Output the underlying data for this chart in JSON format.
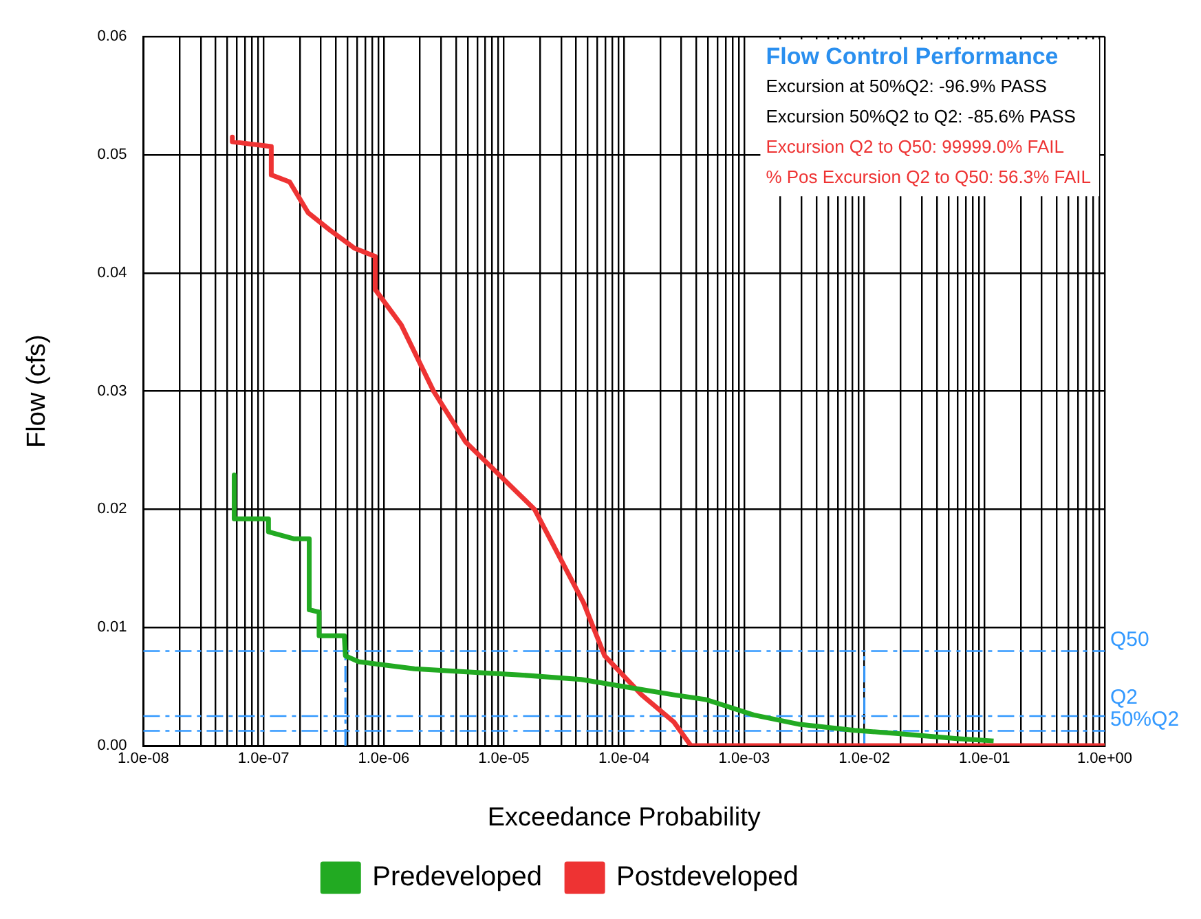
{
  "chart_data": {
    "type": "line",
    "xlabel": "Exceedance Probability",
    "ylabel": "Flow (cfs)",
    "log": "x",
    "grid": true,
    "legend": "bottom",
    "marker": "none",
    "annotations": [
      "Flow Control Performance",
      "Excursion at 50%Q2: -96.9% PASS",
      "Excursion 50%Q2 to Q2: -85.6% PASS",
      "Excursion Q2 to Q50: 99999.0% FAIL",
      "% Pos Excursion Q2 to Q50: 56.3% FAIL"
    ],
    "xlim": [
      1e-08,
      1
    ],
    "ylim": [
      0,
      0.06
    ],
    "xticks": [
      {
        "value": 1e-08,
        "label": "1.0e-08"
      },
      {
        "value": 2e-08,
        "label": null
      },
      {
        "value": 3e-08,
        "label": null
      },
      {
        "value": 4e-08,
        "label": null
      },
      {
        "value": 5e-08,
        "label": null
      },
      {
        "value": 6e-08,
        "label": null
      },
      {
        "value": 7e-08,
        "label": null
      },
      {
        "value": 8e-08,
        "label": null
      },
      {
        "value": 9e-08,
        "label": null
      },
      {
        "value": 1e-07,
        "label": "1.0e-07"
      },
      {
        "value": 2e-07,
        "label": null
      },
      {
        "value": 3e-07,
        "label": null
      },
      {
        "value": 4e-07,
        "label": null
      },
      {
        "value": 5e-07,
        "label": null
      },
      {
        "value": 6e-07,
        "label": null
      },
      {
        "value": 7e-07,
        "label": null
      },
      {
        "value": 8e-07,
        "label": null
      },
      {
        "value": 9e-07,
        "label": null
      },
      {
        "value": 1e-06,
        "label": "1.0e-06"
      },
      {
        "value": 2e-06,
        "label": null
      },
      {
        "value": 3e-06,
        "label": null
      },
      {
        "value": 4e-06,
        "label": null
      },
      {
        "value": 5e-06,
        "label": null
      },
      {
        "value": 6e-06,
        "label": null
      },
      {
        "value": 7e-06,
        "label": null
      },
      {
        "value": 8e-06,
        "label": null
      },
      {
        "value": 9e-06,
        "label": null
      },
      {
        "value": 1e-05,
        "label": "1.0e-05"
      },
      {
        "value": 2e-05,
        "label": null
      },
      {
        "value": 3e-05,
        "label": null
      },
      {
        "value": 4e-05,
        "label": null
      },
      {
        "value": 5e-05,
        "label": null
      },
      {
        "value": 6e-05,
        "label": null
      },
      {
        "value": 7e-05,
        "label": null
      },
      {
        "value": 8e-05,
        "label": null
      },
      {
        "value": 9e-05,
        "label": null
      },
      {
        "value": 0.0001,
        "label": "1.0e-04"
      },
      {
        "value": 0.0002,
        "label": null
      },
      {
        "value": 0.0003,
        "label": null
      },
      {
        "value": 0.0004,
        "label": null
      },
      {
        "value": 0.0005,
        "label": null
      },
      {
        "value": 0.0006,
        "label": null
      },
      {
        "value": 0.0007,
        "label": null
      },
      {
        "value": 0.0008,
        "label": null
      },
      {
        "value": 0.0009,
        "label": null
      },
      {
        "value": 0.001,
        "label": "1.0e-03"
      },
      {
        "value": 0.002,
        "label": null
      },
      {
        "value": 0.003,
        "label": null
      },
      {
        "value": 0.004,
        "label": null
      },
      {
        "value": 0.005,
        "label": null
      },
      {
        "value": 0.006,
        "label": null
      },
      {
        "value": 0.007,
        "label": null
      },
      {
        "value": 0.008,
        "label": null
      },
      {
        "value": 0.009,
        "label": null
      },
      {
        "value": 0.01,
        "label": "1.0e-02"
      },
      {
        "value": 0.02,
        "label": null
      },
      {
        "value": 0.03,
        "label": null
      },
      {
        "value": 0.04,
        "label": null
      },
      {
        "value": 0.05,
        "label": null
      },
      {
        "value": 0.06,
        "label": null
      },
      {
        "value": 0.07,
        "label": null
      },
      {
        "value": 0.08,
        "label": null
      },
      {
        "value": 0.09,
        "label": null
      },
      {
        "value": 0.1,
        "label": "1.0e-01"
      },
      {
        "value": 0.2,
        "label": null
      },
      {
        "value": 0.3,
        "label": null
      },
      {
        "value": 0.4,
        "label": null
      },
      {
        "value": 0.5,
        "label": null
      },
      {
        "value": 0.6,
        "label": null
      },
      {
        "value": 0.7,
        "label": null
      },
      {
        "value": 0.8,
        "label": null
      },
      {
        "value": 0.9,
        "label": null
      },
      {
        "value": 1,
        "label": "1.0e+00"
      }
    ],
    "yticks": [
      {
        "value": 0,
        "label": "0.00"
      },
      0.01,
      0.02,
      0.03,
      0.04,
      0.05,
      0.06
    ],
    "ref_lines": [
      {
        "axis": "y",
        "value": 0.008,
        "label": "Q50",
        "color": "#3399ff",
        "line_style": "dashed"
      },
      {
        "axis": "y",
        "value": 0.0025,
        "label": "Q2",
        "color": "#3399ff",
        "line_style": "dashed"
      },
      {
        "axis": "y",
        "value": 0.00125,
        "label": "50%Q2",
        "color": "#3399ff",
        "line_style": "dashed"
      }
    ],
    "series": [
      {
        "name": "Predeveloped",
        "color": "#22aa22",
        "x": [
          5.7e-08,
          5.7e-08,
          1.1e-07,
          1.1e-07,
          1.8e-07,
          2.4e-07,
          2.4e-07,
          2.9e-07,
          2.9e-07,
          4.7e-07,
          4.8e-07,
          6.2e-07,
          1.8e-06,
          5.8e-06,
          1.3e-05,
          4.4e-05,
          0.00013,
          0.00026,
          0.00048,
          0.0012,
          0.0029,
          0.0083,
          0.02,
          0.059,
          0.119
        ],
        "values": [
          0.0229,
          0.0192,
          0.0192,
          0.0181,
          0.0175,
          0.0175,
          0.0115,
          0.0113,
          0.0093,
          0.0093,
          0.0076,
          0.0071,
          0.0065,
          0.0062,
          0.006,
          0.0056,
          0.0048,
          0.0043,
          0.0039,
          0.0026,
          0.0018,
          0.0013,
          0.001,
          0.0006,
          0.0004
        ]
      },
      {
        "name": "Postdeveloped",
        "color": "#ee3333",
        "x": [
          5.5e-08,
          5.5e-08,
          1.16e-07,
          1.16e-07,
          1.65e-07,
          2.35e-07,
          3.6e-07,
          5.7e-07,
          8.5e-07,
          8.5e-07,
          1.4e-06,
          2.6e-06,
          4.8e-06,
          1.8e-05,
          4.6e-05,
          6.9e-05,
          0.00014,
          0.00026,
          0.00036,
          1
        ],
        "values": [
          0.0515,
          0.0511,
          0.0507,
          0.0483,
          0.0477,
          0.0451,
          0.0436,
          0.0421,
          0.0414,
          0.0386,
          0.0356,
          0.03,
          0.0257,
          0.02,
          0.0121,
          0.0076,
          0.0043,
          0.002,
          0,
          0
        ]
      },
      {
        "color": "#3399ff",
        "line_style": "dashed",
        "x": [
          4.8e-07,
          4.8e-07
        ],
        "values": [
          0,
          0.008
        ]
      },
      {
        "color": "#3399ff",
        "line_style": "dashed",
        "x": [
          0.01,
          0.01
        ],
        "values": [
          0,
          0.008
        ]
      }
    ]
  }
}
